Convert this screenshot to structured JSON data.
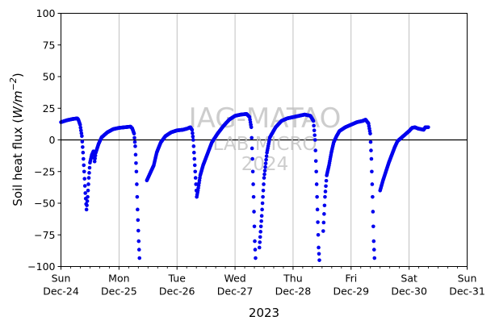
{
  "chart_data": {
    "type": "scatter",
    "title": "",
    "xlabel": "2023",
    "ylabel": "Soil heat flux (W/m⁻²)",
    "ylabel_main": "Soil heat flux (",
    "ylabel_unit": "W/m",
    "ylabel_exp": "−2",
    "ylabel_close": ")",
    "ylim": [
      -100,
      100
    ],
    "yticks": [
      "100",
      "75",
      "50",
      "25",
      "0",
      "−25",
      "−50",
      "−75",
      "−100"
    ],
    "ytick_values": [
      100,
      75,
      50,
      25,
      0,
      -25,
      -50,
      -75,
      -100
    ],
    "xlim_days": [
      0,
      7
    ],
    "xticks": [
      {
        "day": "Sun",
        "date": "Dec-24"
      },
      {
        "day": "Mon",
        "date": "Dec-25"
      },
      {
        "day": "Tue",
        "date": "Dec-26"
      },
      {
        "day": "Wed",
        "date": "Dec-27"
      },
      {
        "day": "Thu",
        "date": "Dec-28"
      },
      {
        "day": "Fri",
        "date": "Dec-29"
      },
      {
        "day": "Sat",
        "date": "Dec-30"
      },
      {
        "day": "Sun",
        "date": "Dec-31"
      }
    ],
    "grid": "vertical",
    "zero_line": true,
    "series": [
      {
        "color": "#0000ee",
        "points": [
          [
            0.0,
            14
          ],
          [
            0.1,
            15.5
          ],
          [
            0.2,
            16.5
          ],
          [
            0.28,
            17
          ],
          [
            0.3,
            16
          ],
          [
            0.33,
            12
          ],
          [
            0.36,
            3
          ],
          [
            0.38,
            -10
          ],
          [
            0.4,
            -25
          ],
          [
            0.42,
            -42
          ],
          [
            0.44,
            -55
          ],
          [
            0.46,
            -45
          ],
          [
            0.48,
            -30
          ],
          [
            0.5,
            -18
          ],
          [
            0.53,
            -12
          ],
          [
            0.56,
            -9
          ],
          [
            0.58,
            -17
          ],
          [
            0.6,
            -10
          ],
          [
            0.65,
            -3
          ],
          [
            0.7,
            2
          ],
          [
            0.8,
            6
          ],
          [
            0.9,
            8.5
          ],
          [
            1.0,
            9.5
          ],
          [
            1.1,
            10
          ],
          [
            1.2,
            10.5
          ],
          [
            1.23,
            9
          ],
          [
            1.26,
            5
          ],
          [
            1.28,
            -5
          ],
          [
            1.3,
            -25
          ],
          [
            1.32,
            -55
          ],
          [
            1.34,
            -80
          ],
          [
            1.36,
            -100
          ],
          [
            1.48,
            -32
          ],
          [
            1.52,
            -28
          ],
          [
            1.56,
            -24
          ],
          [
            1.6,
            -20
          ],
          [
            1.65,
            -10
          ],
          [
            1.72,
            -2
          ],
          [
            1.8,
            3
          ],
          [
            1.9,
            6
          ],
          [
            2.0,
            7.5
          ],
          [
            2.1,
            8
          ],
          [
            2.18,
            9
          ],
          [
            2.23,
            10
          ],
          [
            2.26,
            8
          ],
          [
            2.28,
            0
          ],
          [
            2.3,
            -15
          ],
          [
            2.32,
            -30
          ],
          [
            2.34,
            -45
          ],
          [
            2.36,
            -40
          ],
          [
            2.4,
            -28
          ],
          [
            2.45,
            -20
          ],
          [
            2.5,
            -14
          ],
          [
            2.55,
            -8
          ],
          [
            2.6,
            -2
          ],
          [
            2.7,
            5
          ],
          [
            2.8,
            11
          ],
          [
            2.9,
            16
          ],
          [
            3.0,
            19
          ],
          [
            3.1,
            20
          ],
          [
            3.2,
            20.5
          ],
          [
            3.25,
            18
          ],
          [
            3.28,
            10
          ],
          [
            3.3,
            -15
          ],
          [
            3.32,
            -45
          ],
          [
            3.34,
            -80
          ],
          [
            3.36,
            -100
          ],
          [
            3.42,
            -85
          ],
          [
            3.46,
            -60
          ],
          [
            3.5,
            -30
          ],
          [
            3.55,
            -10
          ],
          [
            3.6,
            2
          ],
          [
            3.7,
            10
          ],
          [
            3.8,
            15
          ],
          [
            3.9,
            17
          ],
          [
            4.0,
            18
          ],
          [
            4.1,
            19
          ],
          [
            4.2,
            20
          ],
          [
            4.3,
            19
          ],
          [
            4.35,
            15
          ],
          [
            4.38,
            0
          ],
          [
            4.4,
            -25
          ],
          [
            4.42,
            -55
          ],
          [
            4.44,
            -85
          ],
          [
            4.46,
            -100
          ],
          [
            4.52,
            -72
          ],
          [
            4.55,
            -45
          ],
          [
            4.58,
            -28
          ],
          [
            4.62,
            -20
          ],
          [
            4.66,
            -10
          ],
          [
            4.7,
            -2
          ],
          [
            4.75,
            3
          ],
          [
            4.8,
            7
          ],
          [
            4.9,
            10
          ],
          [
            5.0,
            12
          ],
          [
            5.1,
            14
          ],
          [
            5.2,
            15
          ],
          [
            5.25,
            16
          ],
          [
            5.3,
            13
          ],
          [
            5.33,
            5
          ],
          [
            5.35,
            -15
          ],
          [
            5.37,
            -45
          ],
          [
            5.39,
            -80
          ],
          [
            5.41,
            -100
          ],
          [
            5.5,
            -40
          ],
          [
            5.55,
            -32
          ],
          [
            5.6,
            -25
          ],
          [
            5.65,
            -18
          ],
          [
            5.7,
            -12
          ],
          [
            5.75,
            -6
          ],
          [
            5.8,
            -1
          ],
          [
            5.9,
            3
          ],
          [
            6.0,
            7
          ],
          [
            6.05,
            9.5
          ],
          [
            6.1,
            10
          ],
          [
            6.15,
            9
          ],
          [
            6.2,
            8.5
          ],
          [
            6.25,
            8
          ],
          [
            6.28,
            10
          ],
          [
            6.33,
            10
          ]
        ]
      }
    ]
  },
  "watermark": {
    "line1": "IAG-MATAO",
    "line2": "LAB MICRO",
    "line3": "2024"
  }
}
